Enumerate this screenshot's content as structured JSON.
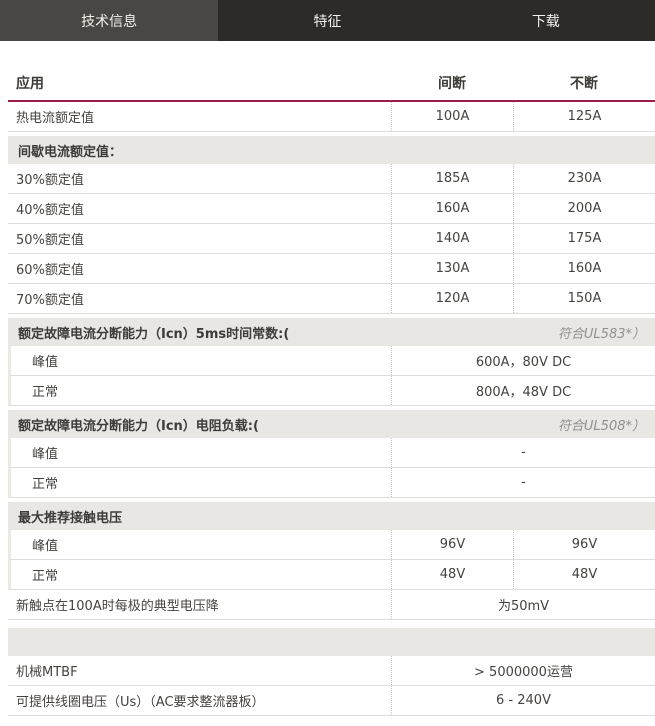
{
  "tabs": [
    {
      "name": "technical-info",
      "label": "技术信息",
      "active": true
    },
    {
      "name": "features",
      "label": "特征",
      "active": false
    },
    {
      "name": "downloads",
      "label": "下载",
      "active": false
    }
  ],
  "table": {
    "header": {
      "application": "应用",
      "intermittent": "间断",
      "continuous": "不断"
    },
    "rows": [
      {
        "type": "data2",
        "label": "热电流额定值",
        "v1": "100A",
        "v2": "125A"
      },
      {
        "type": "section",
        "label": "间歇电流额定值：",
        "note": ""
      },
      {
        "type": "data2",
        "label": "30%额定值",
        "v1": "185A",
        "v2": "230A"
      },
      {
        "type": "data2",
        "label": "40%额定值",
        "v1": "160A",
        "v2": "200A"
      },
      {
        "type": "data2",
        "label": "50%额定值",
        "v1": "140A",
        "v2": "175A"
      },
      {
        "type": "data2",
        "label": "60%额定值",
        "v1": "130A",
        "v2": "160A"
      },
      {
        "type": "data2",
        "label": "70%额定值",
        "v1": "120A",
        "v2": "150A"
      },
      {
        "type": "section",
        "label": "额定故障电流分断能力（Icn）5ms时间常数:(",
        "note": "符合UL583*）"
      },
      {
        "type": "data1",
        "label": "峰值",
        "value": "600A，80V DC",
        "sub": true
      },
      {
        "type": "data1",
        "label": "正常",
        "value": "800A，48V DC",
        "sub": true
      },
      {
        "type": "section",
        "label": "额定故障电流分断能力（Icn）电阻负载:(",
        "note": "符合UL508*）"
      },
      {
        "type": "data1",
        "label": "峰值",
        "value": "-",
        "sub": true
      },
      {
        "type": "data1",
        "label": "正常",
        "value": "-",
        "sub": true
      },
      {
        "type": "section",
        "label": "最大推荐接触电压",
        "note": ""
      },
      {
        "type": "data2",
        "label": "峰值",
        "v1": "96V",
        "v2": "96V",
        "sub": true
      },
      {
        "type": "data2",
        "label": "正常",
        "v1": "48V",
        "v2": "48V",
        "sub": true
      },
      {
        "type": "data1",
        "label": "新触点在100A时每极的典型电压降",
        "value": "为50mV"
      },
      {
        "type": "section",
        "label": "",
        "note": "",
        "spacer": true
      },
      {
        "type": "data1",
        "label": "机械MTBF",
        "value": "> 5000000运营"
      },
      {
        "type": "data1",
        "label": "可提供线圈电压（Us）（AC要求整流器板）",
        "value": "6 - 240V"
      }
    ]
  },
  "colors": {
    "accent_line": "#9b1b4a",
    "tab_bar_bg": "#2d2a28",
    "tab_active_bg": "#4a4643",
    "section_band_bg": "#e9e7e3"
  }
}
